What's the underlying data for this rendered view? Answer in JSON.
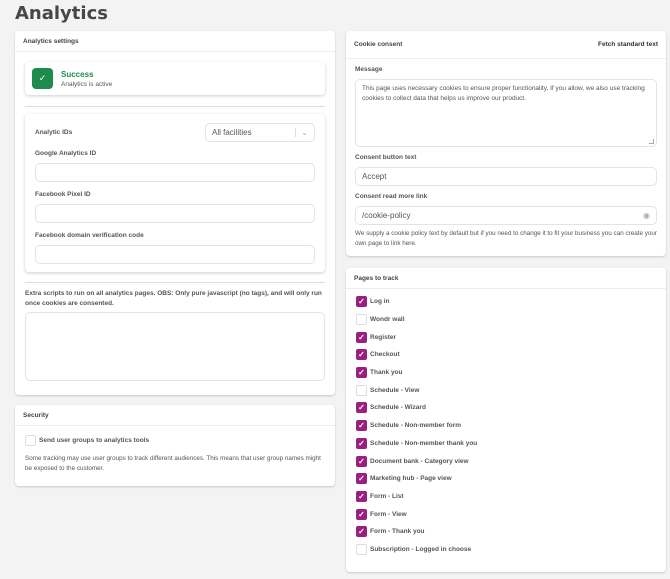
{
  "page": {
    "title": "Analytics"
  },
  "analytics_settings": {
    "header": "Analytics settings",
    "alert": {
      "title": "Success",
      "text": "Analytics is active",
      "icon": "check-icon",
      "color": "#1e8a4c"
    },
    "ids": {
      "label": "Analytic IDs",
      "facility_select": "All facilities",
      "google_label": "Google Analytics ID",
      "google_value": "",
      "pixel_label": "Facebook Pixel ID",
      "pixel_value": "",
      "domain_label": "Facebook domain verification code",
      "domain_value": ""
    },
    "scripts_label": "Extra scripts to run on all analytics pages. OBS: Only pure javascript (no tags), and will only run once cookies are consented.",
    "scripts_value": ""
  },
  "security": {
    "header": "Security",
    "checkbox_label": "Send user groups to analytics tools",
    "checked": false,
    "help": "Some tracking may use user groups to track different audiences. This means that user group names might be exposed to the customer."
  },
  "cookie": {
    "header": "Cookie consent",
    "fetch_button": "Fetch standard text",
    "message_label": "Message",
    "message": "This page uses necessary cookies to ensure proper functionality. If you allow, we also use tracking cookies to collect data that helps us improve our product.",
    "button_label": "Consent button text",
    "button_value": "Accept",
    "link_label": "Consent read more link",
    "link_value": "/cookie-policy",
    "link_help": "We supply a cookie policy text by default but if you need to change it to fit your business you can create your own page to link here."
  },
  "pages": {
    "header": "Pages to track",
    "accent": "#9b1f7e",
    "items": [
      {
        "label": "Log in",
        "checked": true
      },
      {
        "label": "Wondr wall",
        "checked": false
      },
      {
        "label": "Register",
        "checked": true
      },
      {
        "label": "Checkout",
        "checked": true
      },
      {
        "label": "Thank you",
        "checked": true
      },
      {
        "label": "Schedule - View",
        "checked": false
      },
      {
        "label": "Schedule - Wizard",
        "checked": true
      },
      {
        "label": "Schedule - Non-member form",
        "checked": true
      },
      {
        "label": "Schedule - Non-member thank you",
        "checked": true
      },
      {
        "label": "Document bank - Category view",
        "checked": true
      },
      {
        "label": "Marketing hub - Page view",
        "checked": true
      },
      {
        "label": "Form - List",
        "checked": true
      },
      {
        "label": "Form - View",
        "checked": true
      },
      {
        "label": "Form - Thank you",
        "checked": true
      },
      {
        "label": "Subscription - Logged in choose",
        "checked": false
      }
    ]
  }
}
